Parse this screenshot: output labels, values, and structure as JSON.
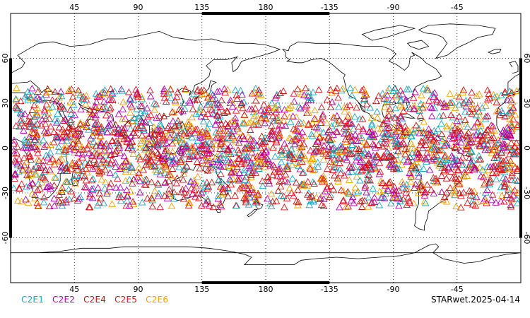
{
  "map": {
    "projection": "cylindrical equidistant",
    "center_longitude": 180,
    "longitude_range": [
      0,
      360
    ],
    "latitude_range": [
      -90,
      90
    ],
    "grid": "dotted",
    "longitude_ticks": [
      "45",
      "90",
      "135",
      "180",
      "-135",
      "-90",
      "-45"
    ],
    "latitude_ticks": [
      "60",
      "30",
      "0",
      "-30",
      "-60"
    ],
    "land_fill": "#ffffff",
    "coastline_color": "#000000"
  },
  "chart_data": {
    "type": "scatter",
    "marker": "open-triangle",
    "latitude_band": [
      -40,
      40
    ],
    "series": [
      {
        "name": "C2E1",
        "color": "#18a8c0"
      },
      {
        "name": "C2E2",
        "color": "#b000b0"
      },
      {
        "name": "C2E4",
        "color": "#c81010"
      },
      {
        "name": "C2E5",
        "color": "#e0101e"
      },
      {
        "name": "C2E6",
        "color": "#f0a000"
      }
    ]
  },
  "legend": {
    "items": [
      {
        "label": "C2E1",
        "color": "#18a8c0"
      },
      {
        "label": "C2E2",
        "color": "#b000b0"
      },
      {
        "label": "C2E4",
        "color": "#c81010"
      },
      {
        "label": "C2E5",
        "color": "#e0101e"
      },
      {
        "label": "C2E6",
        "color": "#f0a000"
      }
    ]
  },
  "footer": {
    "stamp": "STARwet.2025-04-14"
  }
}
